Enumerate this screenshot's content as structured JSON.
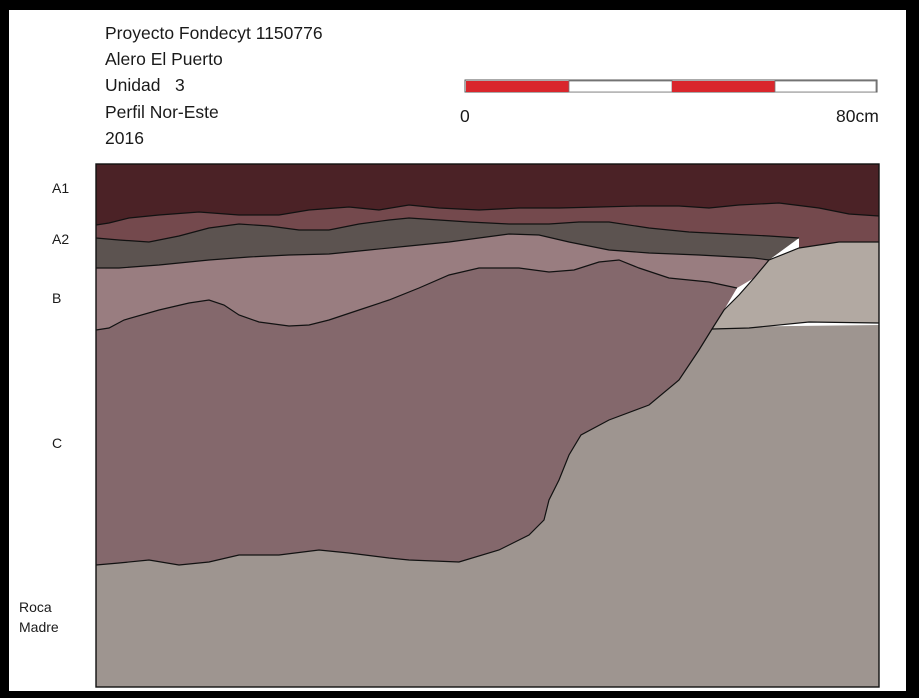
{
  "header": {
    "project": "Proyecto Fondecyt 1150776",
    "site": "Alero El Puerto",
    "unit": "Unidad   3",
    "profile": "Perfil Nor-Este",
    "year": "2016"
  },
  "scale_bar": {
    "start_label": "0",
    "end_label": "80cm",
    "segments": 4,
    "colors": [
      "#d9262c",
      "#ffffff"
    ]
  },
  "layers": [
    {
      "id": "A1",
      "label": "A1",
      "color": "#4b2226"
    },
    {
      "id": "A2",
      "label": "A2",
      "color": "#74494d"
    },
    {
      "id": "A2-dark",
      "label": "",
      "color": "#5c5350"
    },
    {
      "id": "B",
      "label": "B",
      "color": "#997d80"
    },
    {
      "id": "C",
      "label": "C",
      "color": "#84686c"
    },
    {
      "id": "roca",
      "label_line1": "Roca",
      "label_line2": "Madre",
      "color": "#9e9590"
    },
    {
      "id": "light-intrusion",
      "label": "",
      "color": "#b2a9a2"
    }
  ]
}
